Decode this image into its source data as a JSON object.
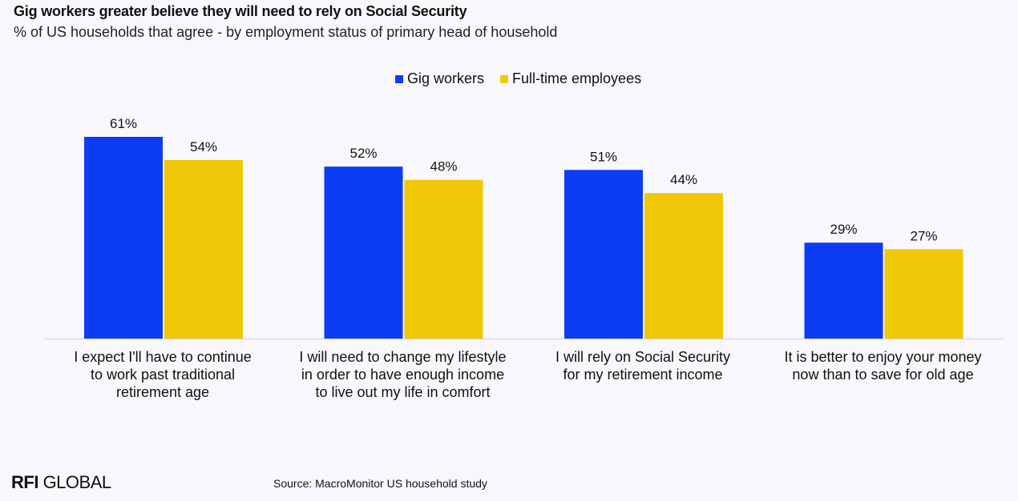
{
  "header": {
    "title": "Gig workers greater believe they will need to rely on Social Security",
    "subtitle": "% of US households that agree - by employment status of primary head of household"
  },
  "legend": [
    {
      "label": "Gig workers",
      "color": "#0d3cf5"
    },
    {
      "label": "Full-time employees",
      "color": "#f0c808"
    }
  ],
  "chart_data": {
    "type": "bar",
    "categories": [
      [
        "I expect I'll have to continue",
        "to work past traditional",
        "retirement age"
      ],
      [
        "I will need to change my lifestyle",
        "in order to have enough income",
        "to live out my life in comfort"
      ],
      [
        "I will rely on Social Security",
        "for my retirement income"
      ],
      [
        "It is better to enjoy your money",
        "now than to save for old age"
      ]
    ],
    "series": [
      {
        "name": "Gig workers",
        "values": [
          61,
          52,
          51,
          29
        ],
        "labels": [
          "61%",
          "52%",
          "51%",
          "29%"
        ],
        "color": "#0d3cf5"
      },
      {
        "name": "Full-time employees",
        "values": [
          54,
          48,
          44,
          27
        ],
        "labels": [
          "54%",
          "48%",
          "44%",
          "27%"
        ],
        "color": "#f0c808"
      }
    ],
    "ylim": [
      0,
      61
    ]
  },
  "footer": {
    "logo_bold": "RFI",
    "logo_rest": " GLOBAL",
    "source": "Source: MacroMonitor US household study"
  }
}
